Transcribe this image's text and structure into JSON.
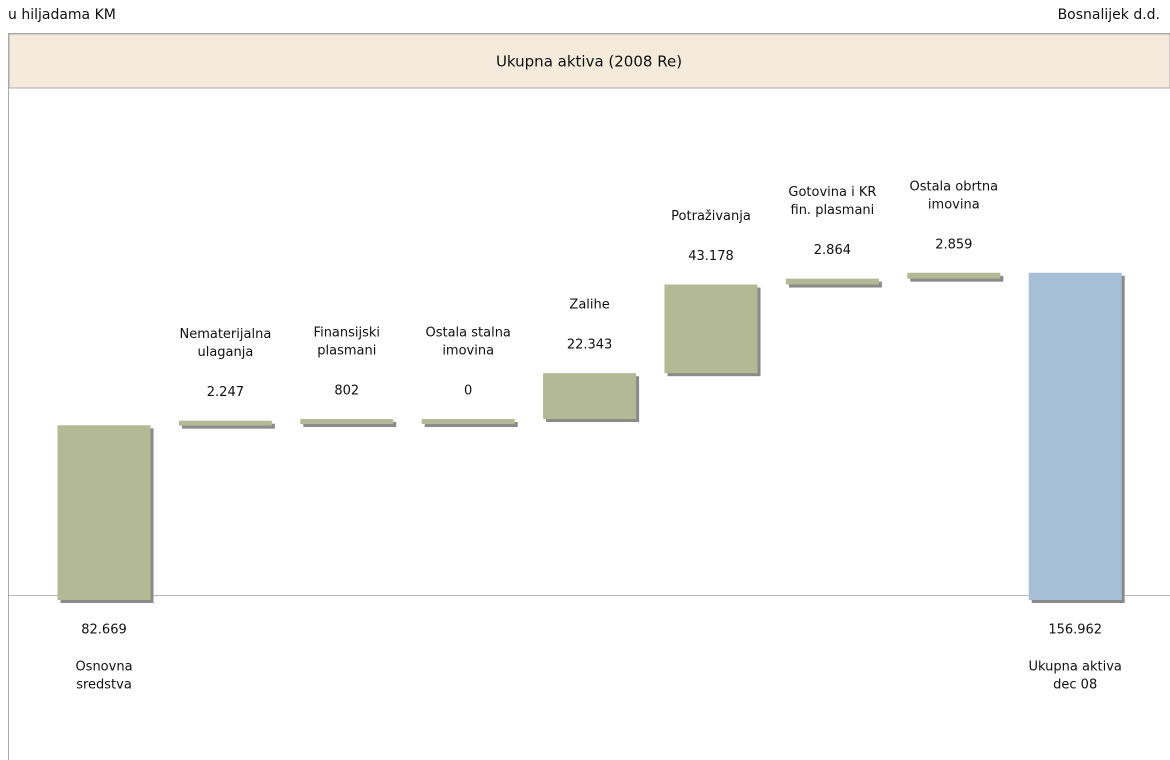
{
  "chart_data": {
    "type": "waterfall",
    "unit_note": "u hiljadama KM",
    "company": "Bosnalijek d.d.",
    "title": "Ukupna aktiva (2008 Re)",
    "categories": [
      [
        "Osnovna",
        "sredstva"
      ],
      [
        "Nematerijalna",
        "ulaganja"
      ],
      [
        "Finansijski",
        "plasmani"
      ],
      [
        "Ostala stalna",
        "imovina"
      ],
      [
        "Zalihe"
      ],
      [
        "Potraživanja"
      ],
      [
        "Gotovina i KR",
        "fin. plasmani"
      ],
      [
        "Ostala obrtna",
        "imovina"
      ],
      [
        "Ukupna aktiva",
        "dec 08"
      ]
    ],
    "values": [
      82669,
      2247,
      802,
      0,
      22343,
      43178,
      2864,
      2859,
      156962
    ],
    "value_labels": [
      "82.669",
      "2.247",
      "802",
      "0",
      "22.343",
      "43.178",
      "2.864",
      "2.859",
      "156.962"
    ],
    "measures": [
      "absolute",
      "relative",
      "relative",
      "relative",
      "relative",
      "relative",
      "relative",
      "relative",
      "total"
    ],
    "color": "#b3b994",
    "total_color": "#a6bfd7",
    "ylim": [
      0,
      246000
    ]
  }
}
